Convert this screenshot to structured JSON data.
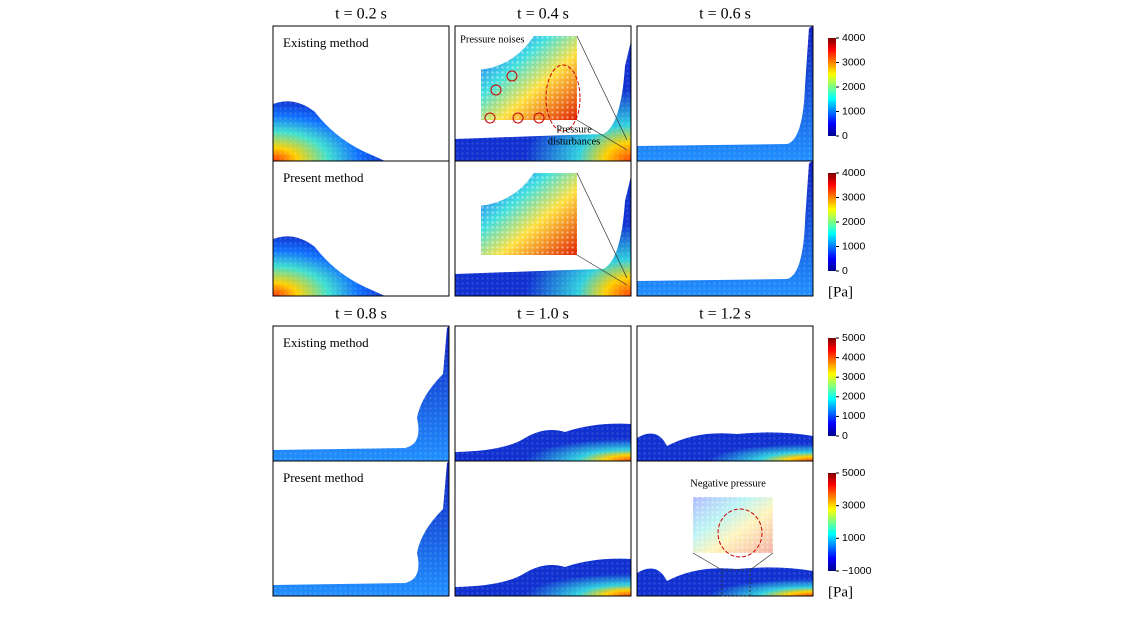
{
  "blocks": [
    {
      "times": [
        "t = 0.2 s",
        "t = 0.4 s",
        "t = 0.6 s"
      ],
      "rows": [
        "Existing method",
        "Present method"
      ],
      "colorbars": [
        {
          "ticks": [
            "4000",
            "3000",
            "2000",
            "1000",
            "0"
          ]
        },
        {
          "ticks": [
            "4000",
            "3000",
            "2000",
            "1000",
            "0"
          ]
        }
      ],
      "unit": "[Pa]"
    },
    {
      "times": [
        "t = 0.8 s",
        "t = 1.0 s",
        "t = 1.2 s"
      ],
      "rows": [
        "Existing method",
        "Present method"
      ],
      "colorbars": [
        {
          "ticks": [
            "5000",
            "4000",
            "3000",
            "2000",
            "1000",
            "0"
          ]
        },
        {
          "ticks": [
            "5000",
            "3000",
            "1000",
            "−1000"
          ]
        }
      ],
      "unit": "[Pa]"
    }
  ],
  "annotations": {
    "pressure_noises": "Pressure noises",
    "pressure_disturbances": [
      "Pressure",
      "disturbances"
    ],
    "negative_pressure": "Negative pressure"
  }
}
